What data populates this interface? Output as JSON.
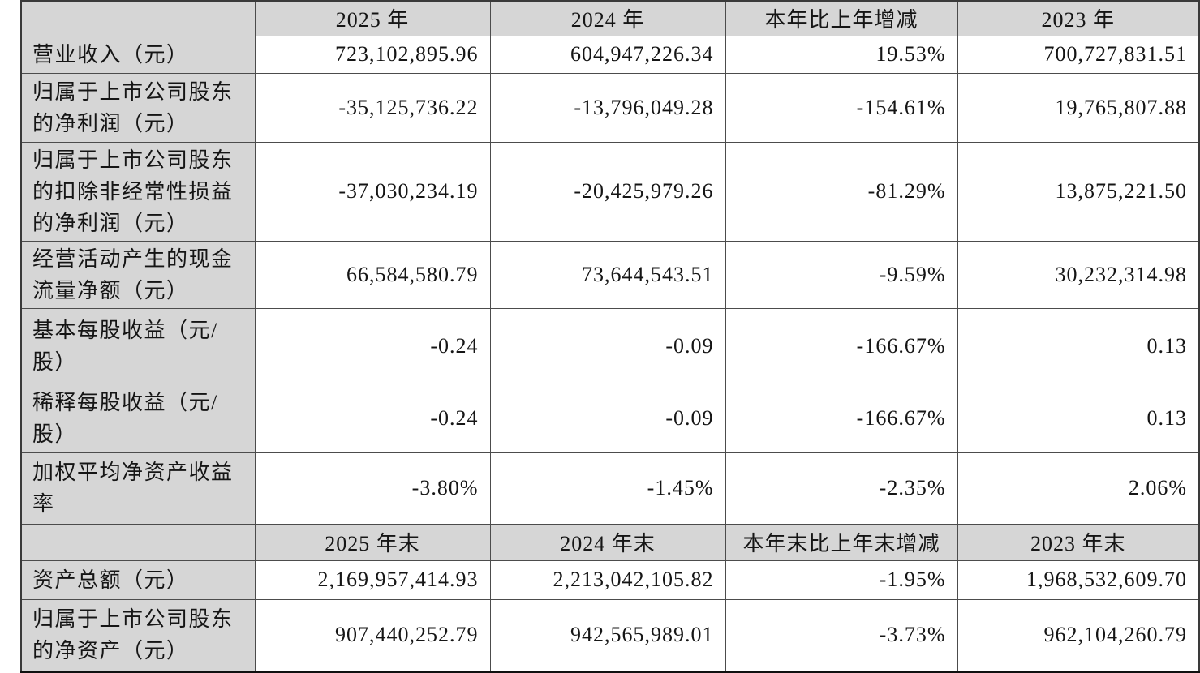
{
  "colors": {
    "header_bg": "#d6d6d6",
    "label_column_bg": "#d6d6d6",
    "data_cell_bg": "#ffffff",
    "border": "#4c4c4c",
    "text": "#151515"
  },
  "table": {
    "header": [
      "",
      "2025 年",
      "2024 年",
      "本年比上年增减",
      "2023 年"
    ],
    "rows": [
      {
        "label": "营业收入（元）",
        "values": [
          "723,102,895.96",
          "604,947,226.34",
          "19.53%",
          "700,727,831.51"
        ]
      },
      {
        "label": "归属于上市公司股东的净利润（元）",
        "values": [
          "-35,125,736.22",
          "-13,796,049.28",
          "-154.61%",
          "19,765,807.88"
        ]
      },
      {
        "label": "归属于上市公司股东的扣除非经常性损益的净利润（元）",
        "values": [
          "-37,030,234.19",
          "-20,425,979.26",
          "-81.29%",
          "13,875,221.50"
        ]
      },
      {
        "label": "经营活动产生的现金流量净额（元）",
        "values": [
          "66,584,580.79",
          "73,644,543.51",
          "-9.59%",
          "30,232,314.98"
        ]
      },
      {
        "label": "基本每股收益（元/股）",
        "values": [
          "-0.24",
          "-0.09",
          "-166.67%",
          "0.13"
        ]
      },
      {
        "label": "稀释每股收益（元/股）",
        "values": [
          "-0.24",
          "-0.09",
          "-166.67%",
          "0.13"
        ]
      },
      {
        "label": "加权平均净资产收益率",
        "values": [
          "-3.80%",
          "-1.45%",
          "-2.35%",
          "2.06%"
        ]
      }
    ],
    "subheader": [
      "",
      "2025 年末",
      "2024 年末",
      "本年末比上年末增减",
      "2023 年末"
    ],
    "rows_end": [
      {
        "label": "资产总额（元）",
        "values": [
          "2,169,957,414.93",
          "2,213,042,105.82",
          "-1.95%",
          "1,968,532,609.70"
        ]
      },
      {
        "label": "归属于上市公司股东的净资产（元）",
        "values": [
          "907,440,252.79",
          "942,565,989.01",
          "-3.73%",
          "962,104,260.79"
        ]
      }
    ]
  }
}
